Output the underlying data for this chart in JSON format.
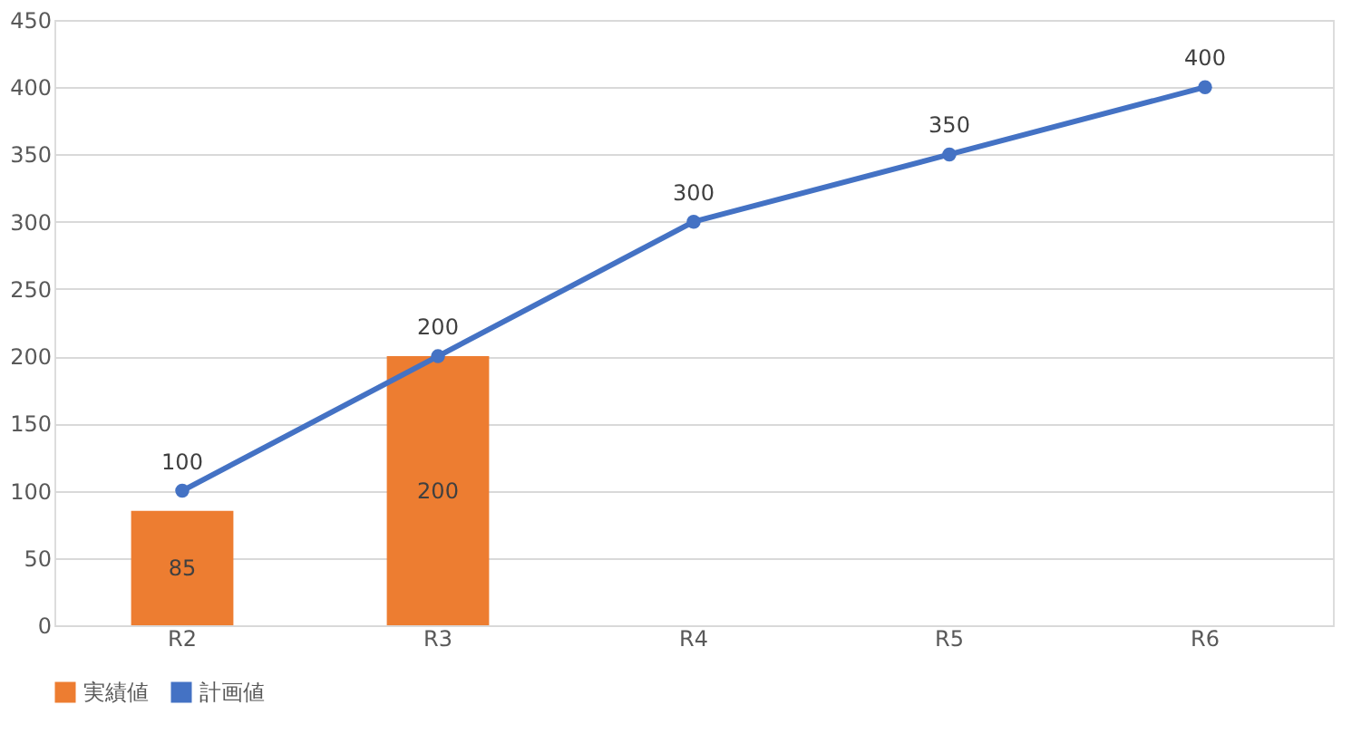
{
  "chart_data": {
    "type": "bar",
    "categories": [
      "R2",
      "R3",
      "R4",
      "R5",
      "R6"
    ],
    "series": [
      {
        "name": "実績値",
        "color": "#ed7d31",
        "values": [
          85,
          200,
          null,
          null,
          null
        ]
      },
      {
        "name": "計画値",
        "type": "line",
        "color": "#4472c4",
        "values": [
          100,
          200,
          300,
          350,
          400
        ]
      }
    ],
    "ylim": [
      0,
      450
    ],
    "yticks": [
      0,
      50,
      100,
      150,
      200,
      250,
      300,
      350,
      400,
      450
    ],
    "grid": "y",
    "legend": "bottom",
    "data_labels": true,
    "marker": "circle"
  }
}
